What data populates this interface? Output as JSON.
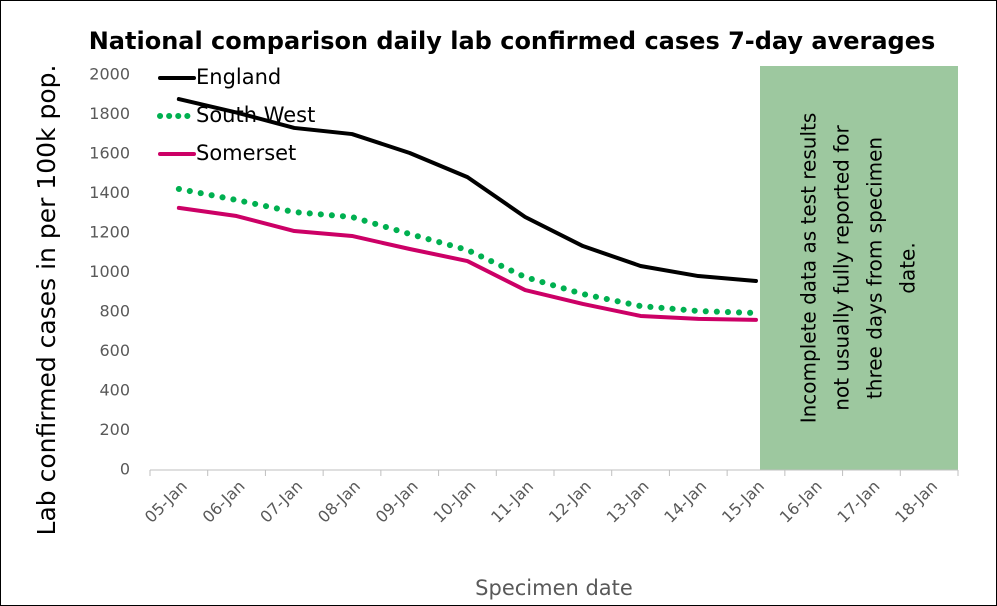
{
  "chart_data": {
    "type": "line",
    "title": "National comparison daily lab confirmed cases 7-day averages",
    "x_label": "Specimen date",
    "y_label": "Lab confirmed cases in per 100k pop.",
    "categories": [
      "05-Jan",
      "06-Jan",
      "07-Jan",
      "08-Jan",
      "09-Jan",
      "10-Jan",
      "11-Jan",
      "12-Jan",
      "13-Jan",
      "14-Jan",
      "15-Jan",
      "16-Jan",
      "17-Jan",
      "18-Jan"
    ],
    "series": [
      {
        "name": "England",
        "color": "#000000",
        "dash": "solid",
        "values": [
          1878,
          1810,
          1732,
          1701,
          1605,
          1483,
          1281,
          1134,
          1033,
          982,
          957,
          null,
          null,
          null
        ]
      },
      {
        "name": "South West",
        "color": "#00b050",
        "dash": "dotted",
        "values": [
          1423,
          1367,
          1306,
          1281,
          1195,
          1114,
          977,
          891,
          830,
          805,
          795,
          null,
          null,
          null
        ]
      },
      {
        "name": "Somerset",
        "color": "#cc0066",
        "dash": "solid",
        "values": [
          1327,
          1286,
          1210,
          1185,
          1119,
          1058,
          911,
          841,
          780,
          765,
          760,
          null,
          null,
          null
        ]
      }
    ],
    "ylim": [
      0,
      2000
    ],
    "yticks": [
      0,
      200,
      400,
      600,
      800,
      1000,
      1200,
      1400,
      1600,
      1800,
      2000
    ],
    "grid": false,
    "legend": "top-left",
    "annotation": {
      "lines": [
        "Incomplete data as test results",
        "not usually fully reported for",
        "three days from specimen",
        "date."
      ],
      "color": "#9dc89f"
    }
  }
}
